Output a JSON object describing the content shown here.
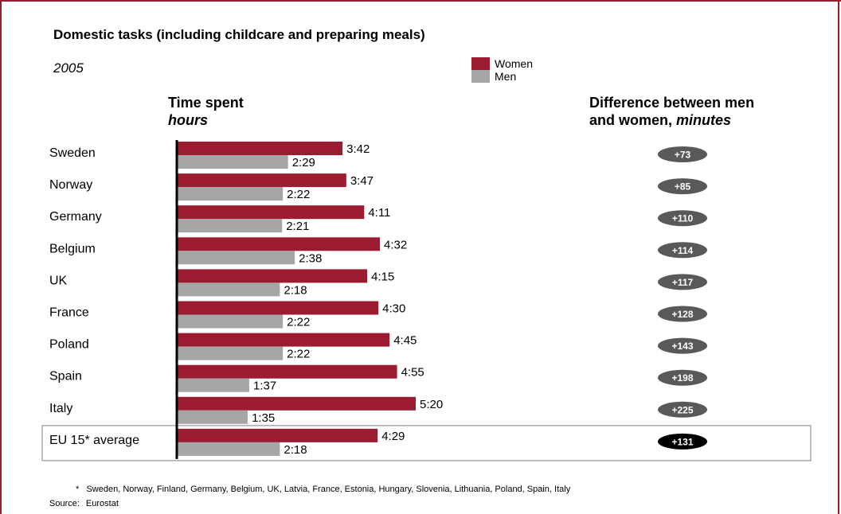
{
  "title": "Domestic tasks (including childcare and preparing meals)",
  "subtitle": "2005",
  "legend": {
    "items": [
      {
        "label": "Women",
        "color": "#9b1b30"
      },
      {
        "label": "Men",
        "color": "#a6a6a6"
      }
    ]
  },
  "column_headers": {
    "left_line1": "Time spent",
    "left_line2": "hours",
    "right_line1": "Difference between men",
    "right_line2_prefix": "and women, ",
    "right_line2_italic": "minutes"
  },
  "footnote": {
    "marker": "*",
    "text": "Sweden, Norway, Finland, Germany, Belgium, UK, Latvia, France, Estonia, Hungary, Slovenia, Lithuania, Poland, Spain, Italy"
  },
  "source": {
    "label": "Source:",
    "value": "Eurostat"
  },
  "colors": {
    "women": "#9b1b30",
    "men": "#a6a6a6",
    "pill": "#595959",
    "pill_highlight": "#000000",
    "axis": "#000000",
    "frame": "#9b1b30"
  },
  "chart_data": {
    "type": "bar",
    "orientation": "horizontal",
    "value_unit": "hours:minutes",
    "categories": [
      "Sweden",
      "Norway",
      "Germany",
      "Belgium",
      "UK",
      "France",
      "Poland",
      "Spain",
      "Italy",
      "EU 15* average"
    ],
    "highlighted_category": "EU 15* average",
    "series": [
      {
        "name": "Women",
        "values": [
          222,
          227,
          251,
          272,
          255,
          270,
          285,
          295,
          320,
          269
        ],
        "labels": [
          "3:42",
          "3:47",
          "4:11",
          "4:32",
          "4:15",
          "4:30",
          "4:45",
          "4:55",
          "5:20",
          "4:29"
        ]
      },
      {
        "name": "Men",
        "values": [
          149,
          142,
          141,
          158,
          138,
          142,
          142,
          97,
          95,
          138
        ],
        "labels": [
          "2:29",
          "2:22",
          "2:21",
          "2:38",
          "2:18",
          "2:22",
          "2:22",
          "1:37",
          "1:35",
          "2:18"
        ]
      }
    ],
    "difference_minutes": [
      "+73",
      "+85",
      "+110",
      "+114",
      "+117",
      "+128",
      "+143",
      "+198",
      "+225",
      "+131"
    ],
    "xlim": [
      0,
      330
    ]
  }
}
